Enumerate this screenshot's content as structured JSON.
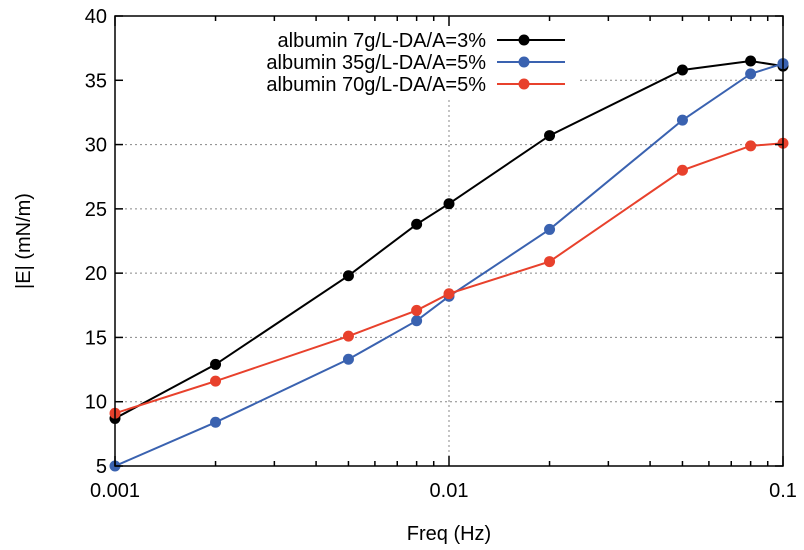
{
  "chart_data": {
    "type": "line",
    "xlabel": "Freq (Hz)",
    "ylabel": "|E| (mN/m)",
    "x_scale": "log",
    "xlim": [
      0.001,
      0.1
    ],
    "ylim": [
      5,
      40
    ],
    "x_ticks": [
      0.001,
      0.01,
      0.1
    ],
    "x_tick_labels": [
      "0.001",
      "0.01",
      "0.1"
    ],
    "y_ticks": [
      5,
      10,
      15,
      20,
      25,
      30,
      35,
      40
    ],
    "y_tick_labels": [
      "5",
      "10",
      "15",
      "20",
      "25",
      "30",
      "35",
      "40"
    ],
    "grid": true,
    "legend_position": "top-right",
    "series": [
      {
        "name": "albumin 7g/L-DA/A=3%",
        "color": "#000000",
        "x": [
          0.001,
          0.002,
          0.005,
          0.008,
          0.01,
          0.02,
          0.05,
          0.08,
          0.1
        ],
        "y": [
          8.7,
          12.9,
          19.8,
          23.8,
          25.4,
          30.7,
          35.8,
          36.5,
          36.1
        ]
      },
      {
        "name": "albumin 35g/L-DA/A=5%",
        "color": "#3a62b0",
        "x": [
          0.001,
          0.002,
          0.005,
          0.008,
          0.01,
          0.02,
          0.05,
          0.08,
          0.1
        ],
        "y": [
          5.0,
          8.4,
          13.3,
          16.3,
          18.2,
          23.4,
          31.9,
          35.5,
          36.3
        ]
      },
      {
        "name": "albumin 70g/L-DA/A=5%",
        "color": "#e8412c",
        "x": [
          0.001,
          0.002,
          0.005,
          0.008,
          0.01,
          0.02,
          0.05,
          0.08,
          0.1
        ],
        "y": [
          9.1,
          11.6,
          15.1,
          17.1,
          18.4,
          20.9,
          28.0,
          29.9,
          30.1
        ]
      }
    ]
  }
}
